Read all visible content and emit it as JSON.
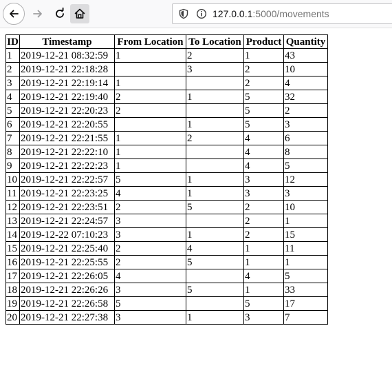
{
  "browser": {
    "url_host": "127.0.0.1",
    "url_rest": ":5000/movements",
    "icons": [
      "back-arrow-icon",
      "forward-arrow-icon",
      "reload-icon",
      "home-icon",
      "shield-icon",
      "info-icon"
    ]
  },
  "table": {
    "headers": [
      "ID",
      "Timestamp",
      "From Location",
      "To Location",
      "Product",
      "Quantity"
    ],
    "rows": [
      [
        "1",
        "2019-12-21 08:32:59",
        "1",
        "2",
        "1",
        "43"
      ],
      [
        "2",
        "2019-12-21 22:18:28",
        "",
        "3",
        "2",
        "10"
      ],
      [
        "3",
        "2019-12-21 22:19:14",
        "1",
        "",
        "2",
        "4"
      ],
      [
        "4",
        "2019-12-21 22:19:40",
        "2",
        "1",
        "5",
        "32"
      ],
      [
        "5",
        "2019-12-21 22:20:23",
        "2",
        "",
        "5",
        "2"
      ],
      [
        "6",
        "2019-12-21 22:20:55",
        "",
        "1",
        "5",
        "3"
      ],
      [
        "7",
        "2019-12-21 22:21:55",
        "1",
        "2",
        "4",
        "6"
      ],
      [
        "8",
        "2019-12-21 22:22:10",
        "1",
        "",
        "4",
        "8"
      ],
      [
        "9",
        "2019-12-21 22:22:23",
        "1",
        "",
        "4",
        "5"
      ],
      [
        "10",
        "2019-12-21 22:22:57",
        "5",
        "1",
        "3",
        "12"
      ],
      [
        "11",
        "2019-12-21 22:23:25",
        "4",
        "1",
        "3",
        "3"
      ],
      [
        "12",
        "2019-12-21 22:23:51",
        "2",
        "5",
        "2",
        "10"
      ],
      [
        "13",
        "2019-12-21 22:24:57",
        "3",
        "",
        "2",
        "1"
      ],
      [
        "14",
        "2019-12-22 07:10:23",
        "3",
        "1",
        "2",
        "15"
      ],
      [
        "15",
        "2019-12-21 22:25:40",
        "2",
        "4",
        "1",
        "11"
      ],
      [
        "16",
        "2019-12-21 22:25:55",
        "2",
        "5",
        "1",
        "1"
      ],
      [
        "17",
        "2019-12-21 22:26:05",
        "4",
        "",
        "4",
        "5"
      ],
      [
        "18",
        "2019-12-21 22:26:26",
        "3",
        "5",
        "1",
        "33"
      ],
      [
        "19",
        "2019-12-21 22:26:58",
        "5",
        "",
        "5",
        "17"
      ],
      [
        "20",
        "2019-12-21 22:27:38",
        "3",
        "1",
        "3",
        "7"
      ]
    ]
  }
}
